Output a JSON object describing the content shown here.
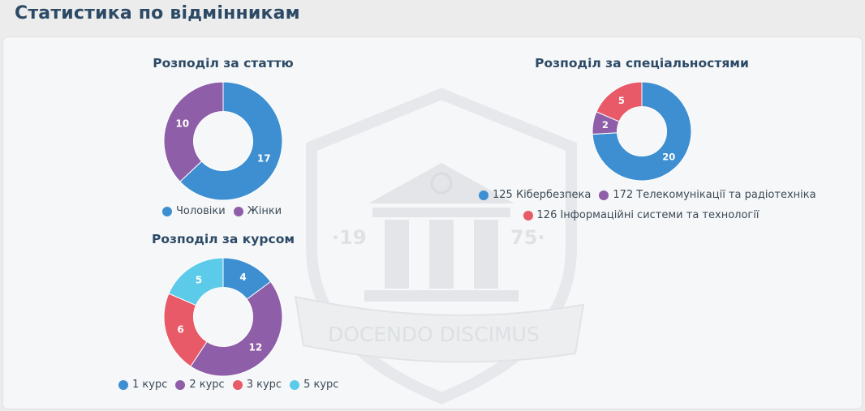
{
  "page": {
    "title": "Статистика по відмінникам"
  },
  "watermark": {
    "motto": "DOCENDO DISCIMUS",
    "year_left": "·19",
    "year_right": "75·"
  },
  "chart_data": [
    {
      "type": "pie",
      "variant": "donut",
      "title": "Розподіл за статтю",
      "categories": [
        "Чоловіки",
        "Жінки"
      ],
      "values": [
        17,
        10
      ],
      "colors": [
        "#3d8fd1",
        "#8e5ea8"
      ],
      "legend": "bottom"
    },
    {
      "type": "pie",
      "variant": "donut",
      "title": "Розподіл за спеціальностями",
      "categories": [
        "125 Кібербезпека",
        "172 Телекомунікації та радіотехніка",
        "126 Інформаційні системи та технології"
      ],
      "values": [
        20,
        2,
        5
      ],
      "colors": [
        "#3d8fd1",
        "#8e5ea8",
        "#e85a67"
      ],
      "legend": "bottom"
    },
    {
      "type": "pie",
      "variant": "donut",
      "title": "Розподіл за курсом",
      "categories": [
        "1 курс",
        "2 курс",
        "3 курс",
        "5 курс"
      ],
      "values": [
        4,
        12,
        6,
        5
      ],
      "colors": [
        "#3d8fd1",
        "#8e5ea8",
        "#e85a67",
        "#5ccbea"
      ],
      "legend": "bottom"
    }
  ]
}
